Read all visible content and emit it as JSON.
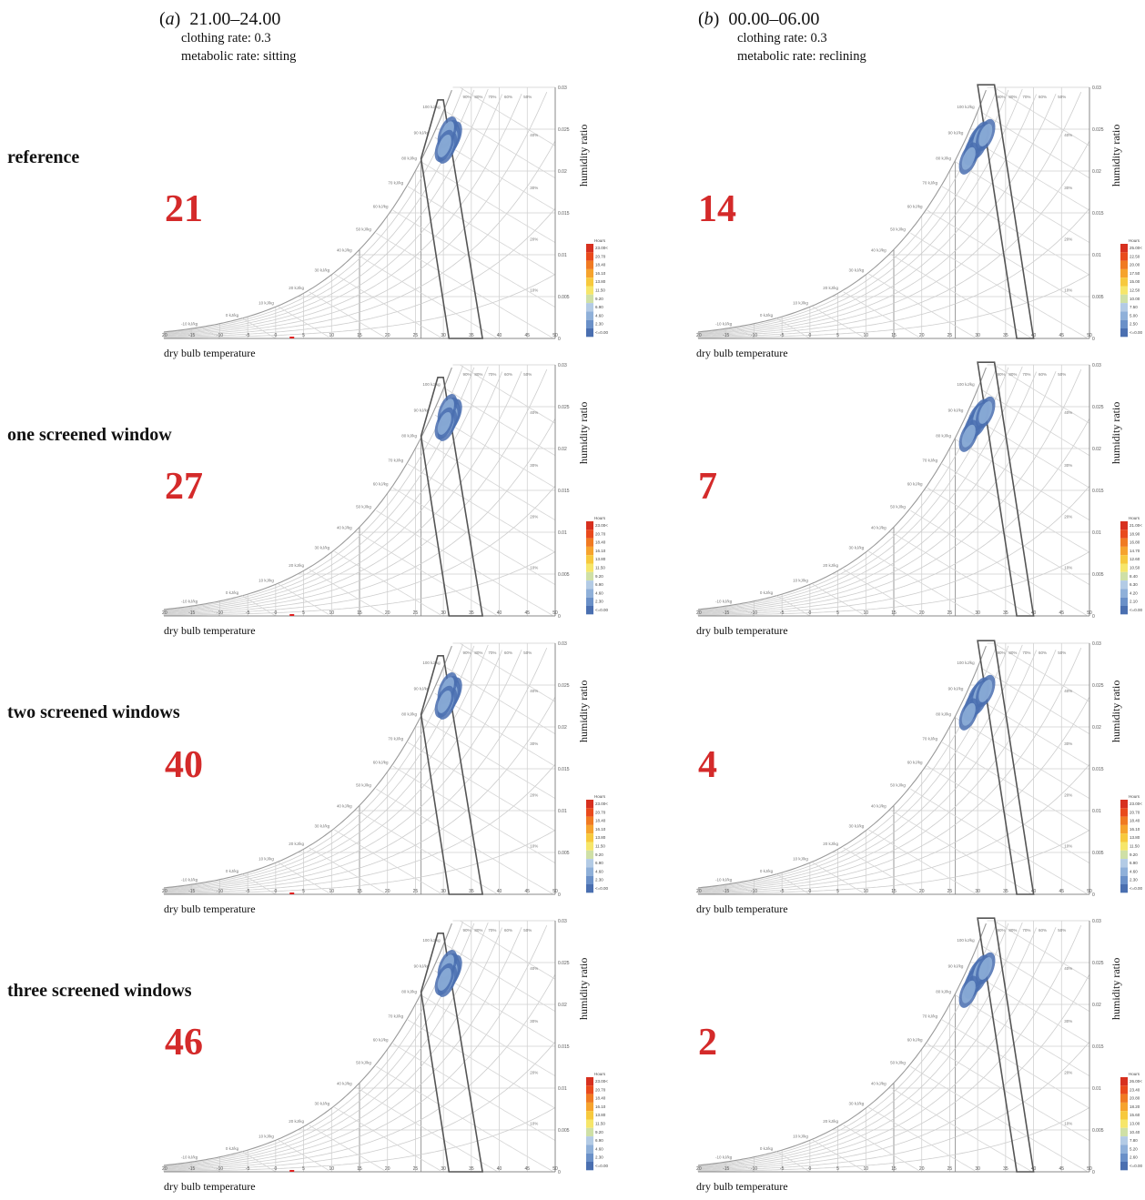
{
  "columns": [
    {
      "letter": "a",
      "time": "21.00–24.00",
      "clothing": "clothing rate: 0.3",
      "metabolic": "metabolic rate: sitting"
    },
    {
      "letter": "b",
      "time": "00.00–06.00",
      "clothing": "clothing rate: 0.3",
      "metabolic": "metabolic rate: reclining"
    }
  ],
  "rows": [
    {
      "label": "reference",
      "values": [
        "21",
        "14"
      ]
    },
    {
      "label": "one screened window",
      "values": [
        "27",
        "7"
      ]
    },
    {
      "label": "two screened windows",
      "values": [
        "40",
        "4"
      ]
    },
    {
      "label": "three screened windows",
      "values": [
        "46",
        "2"
      ]
    }
  ],
  "axis": {
    "x_label": "dry bulb temperature",
    "y_label": "humidity ratio"
  },
  "chart_data": {
    "type": "heatmap",
    "chart_kind": "psychrometric chart",
    "x_ticks": [
      "-20",
      "-15",
      "-10",
      "-5",
      "0",
      "5",
      "10",
      "15",
      "20",
      "25",
      "30",
      "35",
      "40",
      "45",
      "50"
    ],
    "y_ticks": [
      "0.005",
      "0.01",
      "0.015",
      "0.02",
      "0.025",
      "0.03"
    ],
    "xlim": [
      -20,
      50
    ],
    "ylim": [
      0,
      0.03
    ],
    "enthalpy_labels": [
      "-10 kJ/kg",
      "0 kJ/kg",
      "10 kJ/kg",
      "20 kJ/kg",
      "30 kJ/kg",
      "40 kJ/kg",
      "50 kJ/kg",
      "60 kJ/kg",
      "70 kJ/kg",
      "80 kJ/kg",
      "90 kJ/kg",
      "100 kJ/kg",
      "110 kJ/kg"
    ],
    "rh_labels": [
      "10%",
      "20%",
      "30%",
      "40%",
      "50%",
      "60%",
      "70%",
      "80%",
      "90%"
    ],
    "legend_title": "Hours",
    "legends": {
      "a": [
        "23.00<=",
        "20.70",
        "18.40",
        "16.10",
        "13.80",
        "11.50",
        "9.20",
        "6.90",
        "4.60",
        "2.30",
        "<=0.00"
      ],
      "b_ref": [
        "25.00<=",
        "22.50",
        "20.00",
        "17.50",
        "15.00",
        "12.50",
        "10.00",
        "7.50",
        "5.00",
        "2.50",
        "<=0.00"
      ],
      "b_one": [
        "21.00<=",
        "18.90",
        "16.80",
        "14.70",
        "12.60",
        "10.50",
        "8.40",
        "6.30",
        "4.20",
        "2.10",
        "<=0.00"
      ],
      "b_two": [
        "23.00<=",
        "20.70",
        "18.40",
        "16.10",
        "13.80",
        "11.50",
        "9.20",
        "6.90",
        "4.60",
        "2.30",
        "<=0.00"
      ],
      "b_three": [
        "26.00<=",
        "23.40",
        "20.80",
        "18.20",
        "15.60",
        "13.00",
        "10.40",
        "7.80",
        "5.20",
        "2.60",
        "<=0.00"
      ]
    },
    "colorscale": [
      "#d7301f",
      "#e94a1c",
      "#f07a22",
      "#f6a32d",
      "#f7c93d",
      "#f6e66a",
      "#cfe0a6",
      "#b3cbe5",
      "#8fb0d9",
      "#6a90c8",
      "#4a6fb0"
    ],
    "comfort_zone_a": [
      [
        26,
        0.0215
      ],
      [
        29,
        0.0285
      ],
      [
        30,
        0.0285
      ],
      [
        37,
        0
      ],
      [
        31,
        0
      ]
    ],
    "comfort_zone_b": [
      [
        30,
        0.0303
      ],
      [
        33,
        0.0303
      ],
      [
        40,
        0
      ],
      [
        37,
        0
      ]
    ],
    "hotspots": {
      "a": [
        [
          31,
          0.0242
        ],
        [
          31.6,
          0.024
        ],
        [
          31.3,
          0.0236
        ],
        [
          30.7,
          0.0228
        ],
        [
          30.7,
          0.0246
        ],
        [
          30.2,
          0.023
        ]
      ],
      "b": [
        [
          29.8,
          0.0235
        ],
        [
          30.2,
          0.0233
        ],
        [
          29.2,
          0.0226
        ],
        [
          30.4,
          0.024
        ],
        [
          28.4,
          0.0215
        ],
        [
          31.4,
          0.0243
        ]
      ]
    }
  }
}
